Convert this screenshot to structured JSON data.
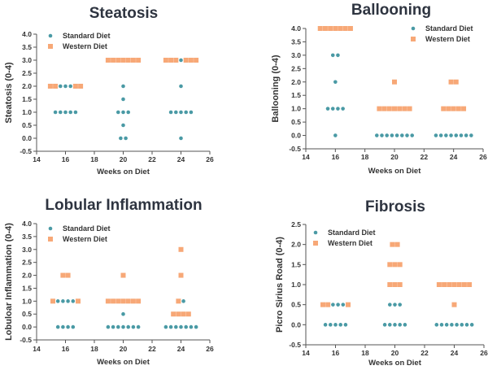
{
  "colors": {
    "standard": "#4a9aa5",
    "western": "#f7a877"
  },
  "chart_data": [
    {
      "type": "scatter",
      "title": "Steatosis",
      "xlabel": "Weeks on Diet",
      "ylabel": "Steatosis (0-4)",
      "xlim": [
        14,
        26
      ],
      "ylim": [
        -0.5,
        4.0
      ],
      "xticks": [
        14,
        16,
        18,
        20,
        22,
        24,
        26
      ],
      "yticks": [
        -0.5,
        0.0,
        0.5,
        1.0,
        1.5,
        2.0,
        2.5,
        3.0,
        3.5,
        4.0
      ],
      "legend": "top-left",
      "series": [
        {
          "name": "Standard Diet",
          "marker": "circle",
          "points": [
            {
              "x": 16,
              "y": 2.0,
              "n": 3
            },
            {
              "x": 16,
              "y": 1.0,
              "n": 5
            },
            {
              "x": 20,
              "y": 2.0,
              "n": 1
            },
            {
              "x": 20,
              "y": 1.5,
              "n": 1
            },
            {
              "x": 20,
              "y": 1.0,
              "n": 3
            },
            {
              "x": 20,
              "y": 0.5,
              "n": 1
            },
            {
              "x": 20,
              "y": 0.0,
              "n": 2
            },
            {
              "x": 24,
              "y": 3.0,
              "n": 1
            },
            {
              "x": 24,
              "y": 2.0,
              "n": 1
            },
            {
              "x": 24,
              "y": 1.0,
              "n": 5
            },
            {
              "x": 24,
              "y": 0.0,
              "n": 1
            }
          ]
        },
        {
          "name": "Western Diet",
          "marker": "square",
          "points": [
            {
              "x": 16,
              "y": 2.0,
              "n": 4
            },
            {
              "x": 20,
              "y": 3.0,
              "n": 7
            },
            {
              "x": 24,
              "y": 3.0,
              "n": 6
            }
          ]
        }
      ]
    },
    {
      "type": "scatter",
      "title": "Ballooning",
      "xlabel": "Weeks on Diet",
      "ylabel": "Ballooning (0-4)",
      "xlim": [
        14,
        26
      ],
      "ylim": [
        -0.5,
        4.0
      ],
      "xticks": [
        14,
        16,
        18,
        20,
        22,
        24,
        26
      ],
      "yticks": [
        -0.5,
        0.0,
        0.5,
        1.0,
        1.5,
        2.0,
        2.5,
        3.0,
        3.5,
        4.0
      ],
      "legend": "top-right",
      "series": [
        {
          "name": "Standard Diet",
          "marker": "circle",
          "points": [
            {
              "x": 16,
              "y": 3.0,
              "n": 2
            },
            {
              "x": 16,
              "y": 2.0,
              "n": 1
            },
            {
              "x": 16,
              "y": 1.0,
              "n": 4
            },
            {
              "x": 16,
              "y": 0.0,
              "n": 1
            },
            {
              "x": 20,
              "y": 0.0,
              "n": 8
            },
            {
              "x": 24,
              "y": 0.0,
              "n": 8
            }
          ]
        },
        {
          "name": "Western Diet",
          "marker": "square",
          "points": [
            {
              "x": 16,
              "y": 4.0,
              "n": 7
            },
            {
              "x": 20,
              "y": 2.0,
              "n": 1
            },
            {
              "x": 20,
              "y": 1.0,
              "n": 7
            },
            {
              "x": 24,
              "y": 2.0,
              "n": 2
            },
            {
              "x": 24,
              "y": 1.0,
              "n": 5
            }
          ]
        }
      ]
    },
    {
      "type": "scatter",
      "title": "Lobular Inflammation",
      "xlabel": "Weeks on Diet",
      "ylabel": "Lobuloar Inflammation (0-4)",
      "xlim": [
        14,
        26
      ],
      "ylim": [
        -0.5,
        4.0
      ],
      "xticks": [
        14,
        16,
        18,
        20,
        22,
        24,
        26
      ],
      "yticks": [
        -0.5,
        0.0,
        0.5,
        1.0,
        1.5,
        2.0,
        2.5,
        3.0,
        3.5,
        4.0
      ],
      "legend": "top-left",
      "series": [
        {
          "name": "Standard Diet",
          "marker": "circle",
          "points": [
            {
              "x": 16,
              "y": 1.0,
              "n": 4
            },
            {
              "x": 16,
              "y": 0.0,
              "n": 4
            },
            {
              "x": 20,
              "y": 0.5,
              "n": 1
            },
            {
              "x": 20,
              "y": 0.0,
              "n": 7
            },
            {
              "x": 24,
              "y": 1.0,
              "n": 1
            },
            {
              "x": 24,
              "y": 0.0,
              "n": 7
            }
          ]
        },
        {
          "name": "Western Diet",
          "marker": "square",
          "points": [
            {
              "x": 16,
              "y": 2.0,
              "n": 2
            },
            {
              "x": 16,
              "y": 1.0,
              "n": 2
            },
            {
              "x": 20,
              "y": 2.0,
              "n": 1
            },
            {
              "x": 20,
              "y": 1.0,
              "n": 7
            },
            {
              "x": 24,
              "y": 3.0,
              "n": 1
            },
            {
              "x": 24,
              "y": 2.0,
              "n": 1
            },
            {
              "x": 24,
              "y": 1.0,
              "n": 1
            },
            {
              "x": 24,
              "y": 0.5,
              "n": 4
            }
          ]
        }
      ]
    },
    {
      "type": "scatter",
      "title": "Fibrosis",
      "xlabel": "Weeks on Diet",
      "ylabel": "Picro Sirius Road (0-4)",
      "xlim": [
        14,
        26
      ],
      "ylim": [
        -0.5,
        2.5
      ],
      "xticks": [
        14,
        16,
        18,
        20,
        22,
        24,
        26
      ],
      "yticks": [
        -0.5,
        0.0,
        0.5,
        1.0,
        1.5,
        2.0,
        2.5
      ],
      "legend": "top-left",
      "series": [
        {
          "name": "Standard Diet",
          "marker": "circle",
          "points": [
            {
              "x": 16,
              "y": 0.5,
              "n": 3
            },
            {
              "x": 16,
              "y": 0.0,
              "n": 5
            },
            {
              "x": 20,
              "y": 0.5,
              "n": 3
            },
            {
              "x": 20,
              "y": 0.0,
              "n": 5
            },
            {
              "x": 24,
              "y": 0.0,
              "n": 8
            }
          ]
        },
        {
          "name": "Western Diet",
          "marker": "square",
          "points": [
            {
              "x": 16,
              "y": 0.5,
              "n": 3
            },
            {
              "x": 20,
              "y": 2.0,
              "n": 2
            },
            {
              "x": 20,
              "y": 1.5,
              "n": 3
            },
            {
              "x": 20,
              "y": 1.0,
              "n": 3
            },
            {
              "x": 24,
              "y": 1.0,
              "n": 7
            },
            {
              "x": 24,
              "y": 0.5,
              "n": 1
            }
          ]
        }
      ]
    }
  ]
}
